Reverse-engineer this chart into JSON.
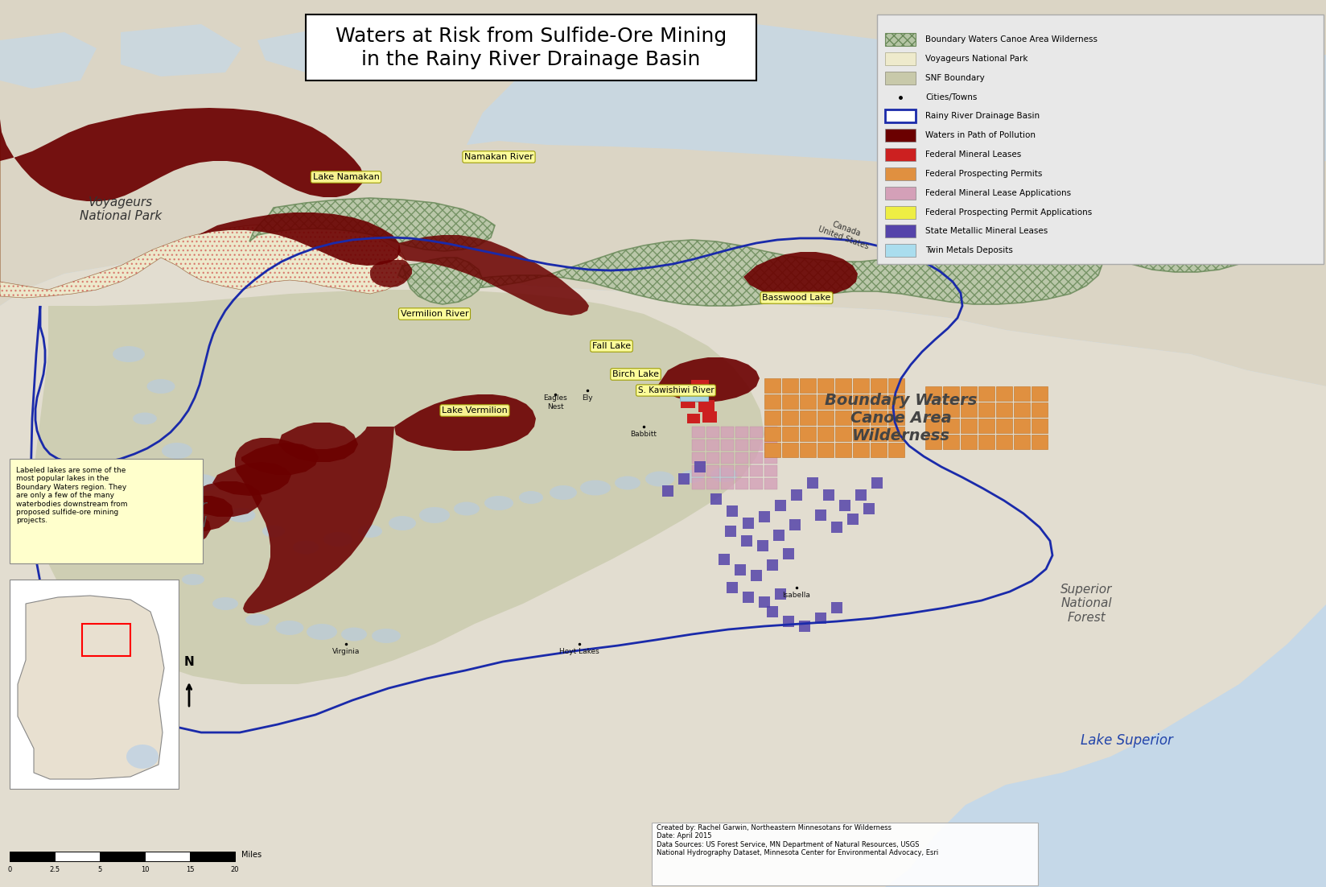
{
  "title_line1": "Waters at Risk from Sulfide-Ore Mining",
  "title_line2": "in the Rainy River Drainage Basin",
  "figsize": [
    16.49,
    11.02
  ],
  "dpi": 100,
  "bg_water_color": "#c5d8e8",
  "canada_land_color": "#dbd5c5",
  "us_land_color": "#e2ddd0",
  "snf_color": "#c8c9aa",
  "bwcaw_fill": "#b5c5a5",
  "bwcaw_hatch_color": "#6a8a5a",
  "vnp_fill": "#eeeacc",
  "vnp_dot_color": "#cc4444",
  "rainy_basin_color": "#1a2aaa",
  "waters_pollution_color": "#6b0000",
  "fed_mineral_leases_color": "#cc2020",
  "fed_prospecting_permits_color": "#e09040",
  "fed_mineral_lease_apps_color": "#d4a0b8",
  "fed_prospecting_permit_apps_color": "#eeee44",
  "state_metallic_mineral_color": "#5544aa",
  "twin_metals_color": "#aaddee",
  "legend_items": [
    {
      "label": "Boundary Waters Canoe Area Wilderness",
      "type": "hatch",
      "facecolor": "#b5c5a5",
      "edgecolor": "#6a8a5a",
      "hatch": "xxx"
    },
    {
      "label": "Voyageurs National Park",
      "type": "patch",
      "facecolor": "#eeeacc",
      "edgecolor": "#aaa888"
    },
    {
      "label": "SNF Boundary",
      "type": "patch",
      "facecolor": "#c8c9aa",
      "edgecolor": "#888877"
    },
    {
      "label": "Cities/Towns",
      "type": "dot",
      "color": "#111111"
    },
    {
      "label": "Rainy River Drainage Basin",
      "type": "outline",
      "facecolor": "white",
      "edgecolor": "#1a2aaa"
    },
    {
      "label": "Waters in Path of Pollution",
      "type": "patch",
      "facecolor": "#6b0000",
      "edgecolor": "none"
    },
    {
      "label": "Federal Mineral Leases",
      "type": "patch",
      "facecolor": "#cc2020",
      "edgecolor": "none"
    },
    {
      "label": "Federal Prospecting Permits",
      "type": "patch",
      "facecolor": "#e09040",
      "edgecolor": "none"
    },
    {
      "label": "Federal Mineral Lease Applications",
      "type": "patch",
      "facecolor": "#d4a0b8",
      "edgecolor": "none"
    },
    {
      "label": "Federal Prospecting Permit Applications",
      "type": "patch",
      "facecolor": "#eeee44",
      "edgecolor": "none"
    },
    {
      "label": "State Metallic Mineral Leases",
      "type": "patch",
      "facecolor": "#5544aa",
      "edgecolor": "none"
    },
    {
      "label": "Twin Metals Deposits",
      "type": "patch",
      "facecolor": "#aaddee",
      "edgecolor": "none"
    }
  ],
  "annotation_text": "Labeled lakes are some of the\nmost popular lakes in the\nBoundary Waters region. They\nare only a few of the many\nwaterbodies downstream from\nproposed sulfide-ore mining\nprojects.",
  "credits": "Created by: Rachel Garwin, Northeastern Minnesotans for Wilderness\nDate: April 2015\nData Sources: US Forest Service, MN Department of Natural Resources, USGS\nNational Hydrography Dataset, Minnesota Center for Environmental Advocacy, Esri"
}
